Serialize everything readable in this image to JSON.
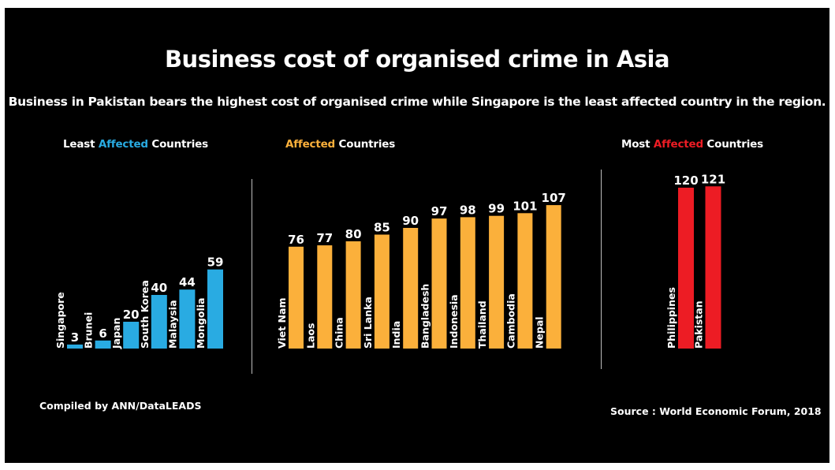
{
  "title": "Business cost of organised crime in Asia",
  "subtitle": "Business in Pakistan bears the highest cost of organised crime while Singapore is the least affected country in the region.",
  "groups": {
    "least": {
      "prefix": "Least ",
      "highlight": "Affected",
      "suffix": " Countries",
      "color": "#29abe2"
    },
    "affected": {
      "prefix": "",
      "highlight": "Affected",
      "suffix": " Countries",
      "color": "#fbb03b"
    },
    "most": {
      "prefix": "Most ",
      "highlight": "Affected",
      "suffix": " Countries",
      "color": "#ed1c24"
    }
  },
  "footer": {
    "compiled": "Compiled by ANN/DataLEADS",
    "source": "Source : World Economic Forum, 2018"
  },
  "chart_data": [
    {
      "type": "bar",
      "group": "Least Affected Countries",
      "color": "#29abe2",
      "categories": [
        "Singapore",
        "Brunei",
        "Japan",
        "South Korea",
        "Malaysia",
        "Mongolia"
      ],
      "values": [
        3,
        6,
        20,
        40,
        44,
        59
      ]
    },
    {
      "type": "bar",
      "group": "Affected Countries",
      "color": "#fbb03b",
      "categories": [
        "Viet Nam",
        "Laos",
        "China",
        "Sri Lanka",
        "India",
        "Bangladesh",
        "Indonesia",
        "Thailand",
        "Cambodia",
        "Nepal"
      ],
      "values": [
        76,
        77,
        80,
        85,
        90,
        97,
        98,
        99,
        101,
        107
      ]
    },
    {
      "type": "bar",
      "group": "Most Affected Countries",
      "color": "#ed1c24",
      "categories": [
        "Philippines",
        "Pakistan"
      ],
      "values": [
        120,
        121
      ]
    }
  ]
}
